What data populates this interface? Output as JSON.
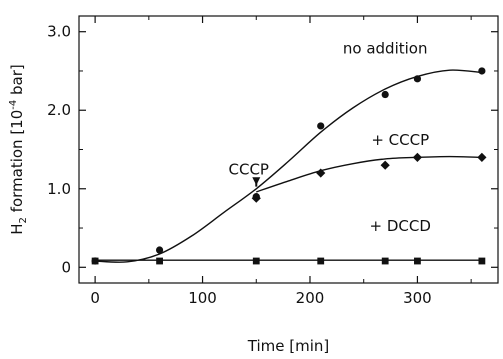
{
  "chart_data": {
    "type": "scatter",
    "title": "",
    "xlabel": "Time [min]",
    "ylabel_main": "H",
    "ylabel_sub": "2",
    "ylabel_rest": " formation [10",
    "ylabel_sup": "-4",
    "ylabel_end": " bar]",
    "xlim": [
      -15,
      375
    ],
    "ylim": [
      -0.2,
      3.2
    ],
    "x_ticks": [
      0,
      100,
      200,
      300
    ],
    "x_tick_labels": [
      "0",
      "100",
      "200",
      "300"
    ],
    "y_ticks": [
      0,
      1.0,
      2.0,
      3.0
    ],
    "y_tick_labels": [
      "0",
      "1.0",
      "2.0",
      "3.0"
    ],
    "grid": false,
    "series": [
      {
        "name": "no addition",
        "marker": "circle",
        "points": [
          [
            0,
            0.08
          ],
          [
            60,
            0.22
          ],
          [
            150,
            0.9
          ],
          [
            210,
            1.8
          ],
          [
            270,
            2.2
          ],
          [
            300,
            2.4
          ],
          [
            360,
            2.5
          ]
        ],
        "curve": [
          [
            0,
            0.08
          ],
          [
            30,
            0.07
          ],
          [
            60,
            0.17
          ],
          [
            90,
            0.4
          ],
          [
            120,
            0.7
          ],
          [
            150,
            1.0
          ],
          [
            180,
            1.35
          ],
          [
            210,
            1.72
          ],
          [
            240,
            2.03
          ],
          [
            270,
            2.27
          ],
          [
            300,
            2.43
          ],
          [
            330,
            2.51
          ],
          [
            360,
            2.48
          ]
        ]
      },
      {
        "name": "+ CCCP",
        "marker": "diamond",
        "points": [
          [
            150,
            0.88
          ],
          [
            210,
            1.2
          ],
          [
            270,
            1.3
          ],
          [
            300,
            1.4
          ],
          [
            360,
            1.4
          ]
        ],
        "curve": [
          [
            150,
            0.96
          ],
          [
            180,
            1.1
          ],
          [
            210,
            1.23
          ],
          [
            240,
            1.32
          ],
          [
            270,
            1.38
          ],
          [
            300,
            1.4
          ],
          [
            330,
            1.41
          ],
          [
            360,
            1.4
          ]
        ]
      },
      {
        "name": "+ DCCD",
        "marker": "square",
        "points": [
          [
            0,
            0.08
          ],
          [
            60,
            0.08
          ],
          [
            150,
            0.08
          ],
          [
            210,
            0.08
          ],
          [
            270,
            0.08
          ],
          [
            300,
            0.08
          ],
          [
            360,
            0.08
          ]
        ],
        "curve": [
          [
            0,
            0.09
          ],
          [
            60,
            0.09
          ],
          [
            150,
            0.09
          ],
          [
            210,
            0.09
          ],
          [
            270,
            0.09
          ],
          [
            300,
            0.09
          ],
          [
            360,
            0.09
          ]
        ]
      }
    ],
    "annotations": [
      {
        "text": "no addition",
        "x": 270,
        "y": 2.72
      },
      {
        "text": "+ CCCP",
        "x": 284,
        "y": 1.56
      },
      {
        "text": "+ DCCD",
        "x": 284,
        "y": 0.46
      },
      {
        "text": "CCCP",
        "x": 143,
        "y": 1.18,
        "arrow_to": [
          150,
          1.02
        ]
      }
    ]
  }
}
